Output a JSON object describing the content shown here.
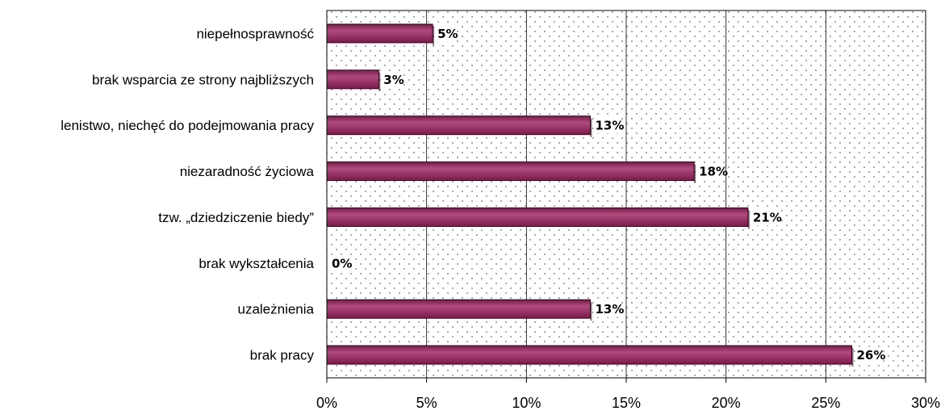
{
  "chart_data": {
    "type": "bar",
    "orientation": "horizontal",
    "title": "",
    "xlabel": "",
    "ylabel": "",
    "categories": [
      "niepełnosprawność",
      "brak wsparcia ze strony najbliższych",
      "lenistwo, niechęć do podejmowania pracy",
      "niezaradność życiowa",
      "tzw. „dziedziczenie biedy”",
      "brak wykształcenia",
      "uzależnienia",
      "brak pracy"
    ],
    "values": [
      5.3,
      2.6,
      13.2,
      18.4,
      21.1,
      0,
      13.2,
      26.3
    ],
    "data_labels": [
      "5%",
      "3%",
      "13%",
      "18%",
      "21%",
      "0%",
      "13%",
      "26%"
    ],
    "xlim": [
      0,
      30
    ],
    "x_ticks": [
      0,
      5,
      10,
      15,
      20,
      25,
      30
    ],
    "x_tick_labels": [
      "0%",
      "5%",
      "10%",
      "15%",
      "20%",
      "25%",
      "30%"
    ],
    "grid": "vertical",
    "legend": "none",
    "colors": {
      "bar": "#7a1a4a",
      "bar_highlight": "#b04a7e",
      "bar_edge": "#2a0a1a",
      "plot_background_dots": "#6e6e6e"
    }
  }
}
